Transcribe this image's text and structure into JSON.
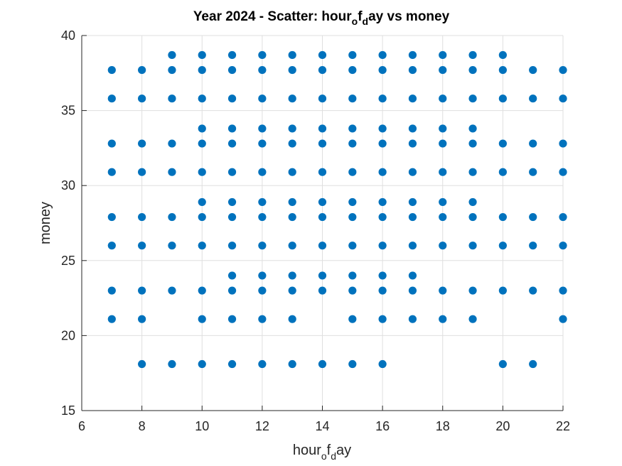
{
  "chart_data": {
    "type": "scatter",
    "title_parts": [
      {
        "text": "Year 2024 - Scatter: hour",
        "sub": false
      },
      {
        "text": "o",
        "sub": true
      },
      {
        "text": "f",
        "sub": false
      },
      {
        "text": "d",
        "sub": true
      },
      {
        "text": "ay vs money",
        "sub": false
      }
    ],
    "xlabel_parts": [
      {
        "text": "hour",
        "sub": false
      },
      {
        "text": "o",
        "sub": true
      },
      {
        "text": "f",
        "sub": false
      },
      {
        "text": "d",
        "sub": true
      },
      {
        "text": "ay",
        "sub": false
      }
    ],
    "ylabel": "money",
    "xlim": [
      6,
      22
    ],
    "ylim": [
      15,
      40
    ],
    "xticks": [
      6,
      8,
      10,
      12,
      14,
      16,
      18,
      20,
      22
    ],
    "yticks": [
      15,
      20,
      25,
      30,
      35,
      40
    ],
    "grid": true,
    "marker_color": "#0072BD",
    "points": [
      [
        7,
        37.7
      ],
      [
        7,
        35.8
      ],
      [
        7,
        32.8
      ],
      [
        7,
        30.9
      ],
      [
        7,
        27.9
      ],
      [
        7,
        26.0
      ],
      [
        7,
        23.0
      ],
      [
        7,
        21.1
      ],
      [
        8,
        37.7
      ],
      [
        8,
        35.8
      ],
      [
        8,
        32.8
      ],
      [
        8,
        30.9
      ],
      [
        8,
        27.9
      ],
      [
        8,
        26.0
      ],
      [
        8,
        23.0
      ],
      [
        8,
        21.1
      ],
      [
        8,
        18.1
      ],
      [
        9,
        38.7
      ],
      [
        9,
        37.7
      ],
      [
        9,
        35.8
      ],
      [
        9,
        32.8
      ],
      [
        9,
        30.9
      ],
      [
        9,
        27.9
      ],
      [
        9,
        26.0
      ],
      [
        9,
        23.0
      ],
      [
        9,
        18.1
      ],
      [
        10,
        38.7
      ],
      [
        10,
        37.7
      ],
      [
        10,
        35.8
      ],
      [
        10,
        33.8
      ],
      [
        10,
        32.8
      ],
      [
        10,
        30.9
      ],
      [
        10,
        28.9
      ],
      [
        10,
        27.9
      ],
      [
        10,
        26.0
      ],
      [
        10,
        23.0
      ],
      [
        10,
        21.1
      ],
      [
        10,
        18.1
      ],
      [
        11,
        38.7
      ],
      [
        11,
        37.7
      ],
      [
        11,
        35.8
      ],
      [
        11,
        33.8
      ],
      [
        11,
        32.8
      ],
      [
        11,
        30.9
      ],
      [
        11,
        28.9
      ],
      [
        11,
        27.9
      ],
      [
        11,
        26.0
      ],
      [
        11,
        24.0
      ],
      [
        11,
        23.0
      ],
      [
        11,
        21.1
      ],
      [
        11,
        18.1
      ],
      [
        12,
        38.7
      ],
      [
        12,
        37.7
      ],
      [
        12,
        35.8
      ],
      [
        12,
        33.8
      ],
      [
        12,
        32.8
      ],
      [
        12,
        30.9
      ],
      [
        12,
        28.9
      ],
      [
        12,
        27.9
      ],
      [
        12,
        26.0
      ],
      [
        12,
        24.0
      ],
      [
        12,
        23.0
      ],
      [
        12,
        21.1
      ],
      [
        12,
        18.1
      ],
      [
        13,
        38.7
      ],
      [
        13,
        37.7
      ],
      [
        13,
        35.8
      ],
      [
        13,
        33.8
      ],
      [
        13,
        32.8
      ],
      [
        13,
        30.9
      ],
      [
        13,
        28.9
      ],
      [
        13,
        27.9
      ],
      [
        13,
        26.0
      ],
      [
        13,
        24.0
      ],
      [
        13,
        23.0
      ],
      [
        13,
        21.1
      ],
      [
        13,
        18.1
      ],
      [
        14,
        38.7
      ],
      [
        14,
        37.7
      ],
      [
        14,
        35.8
      ],
      [
        14,
        33.8
      ],
      [
        14,
        32.8
      ],
      [
        14,
        30.9
      ],
      [
        14,
        28.9
      ],
      [
        14,
        27.9
      ],
      [
        14,
        26.0
      ],
      [
        14,
        24.0
      ],
      [
        14,
        23.0
      ],
      [
        14,
        18.1
      ],
      [
        15,
        38.7
      ],
      [
        15,
        37.7
      ],
      [
        15,
        35.8
      ],
      [
        15,
        33.8
      ],
      [
        15,
        32.8
      ],
      [
        15,
        30.9
      ],
      [
        15,
        28.9
      ],
      [
        15,
        27.9
      ],
      [
        15,
        26.0
      ],
      [
        15,
        24.0
      ],
      [
        15,
        23.0
      ],
      [
        15,
        21.1
      ],
      [
        15,
        18.1
      ],
      [
        16,
        38.7
      ],
      [
        16,
        37.7
      ],
      [
        16,
        35.8
      ],
      [
        16,
        33.8
      ],
      [
        16,
        32.8
      ],
      [
        16,
        30.9
      ],
      [
        16,
        28.9
      ],
      [
        16,
        27.9
      ],
      [
        16,
        26.0
      ],
      [
        16,
        24.0
      ],
      [
        16,
        23.0
      ],
      [
        16,
        21.1
      ],
      [
        16,
        18.1
      ],
      [
        17,
        38.7
      ],
      [
        17,
        37.7
      ],
      [
        17,
        35.8
      ],
      [
        17,
        33.8
      ],
      [
        17,
        32.8
      ],
      [
        17,
        30.9
      ],
      [
        17,
        28.9
      ],
      [
        17,
        27.9
      ],
      [
        17,
        26.0
      ],
      [
        17,
        24.0
      ],
      [
        17,
        23.0
      ],
      [
        17,
        21.1
      ],
      [
        18,
        38.7
      ],
      [
        18,
        37.7
      ],
      [
        18,
        35.8
      ],
      [
        18,
        33.8
      ],
      [
        18,
        32.8
      ],
      [
        18,
        30.9
      ],
      [
        18,
        28.9
      ],
      [
        18,
        27.9
      ],
      [
        18,
        26.0
      ],
      [
        18,
        23.0
      ],
      [
        18,
        21.1
      ],
      [
        19,
        38.7
      ],
      [
        19,
        37.7
      ],
      [
        19,
        35.8
      ],
      [
        19,
        33.8
      ],
      [
        19,
        32.8
      ],
      [
        19,
        30.9
      ],
      [
        19,
        28.9
      ],
      [
        19,
        27.9
      ],
      [
        19,
        26.0
      ],
      [
        19,
        23.0
      ],
      [
        19,
        21.1
      ],
      [
        20,
        38.7
      ],
      [
        20,
        37.7
      ],
      [
        20,
        35.8
      ],
      [
        20,
        32.8
      ],
      [
        20,
        30.9
      ],
      [
        20,
        27.9
      ],
      [
        20,
        26.0
      ],
      [
        20,
        23.0
      ],
      [
        20,
        18.1
      ],
      [
        21,
        37.7
      ],
      [
        21,
        35.8
      ],
      [
        21,
        32.8
      ],
      [
        21,
        30.9
      ],
      [
        21,
        27.9
      ],
      [
        21,
        26.0
      ],
      [
        21,
        23.0
      ],
      [
        21,
        18.1
      ],
      [
        22,
        37.7
      ],
      [
        22,
        35.8
      ],
      [
        22,
        32.8
      ],
      [
        22,
        30.9
      ],
      [
        22,
        27.9
      ],
      [
        22,
        26.0
      ],
      [
        22,
        23.0
      ],
      [
        22,
        21.1
      ]
    ]
  }
}
